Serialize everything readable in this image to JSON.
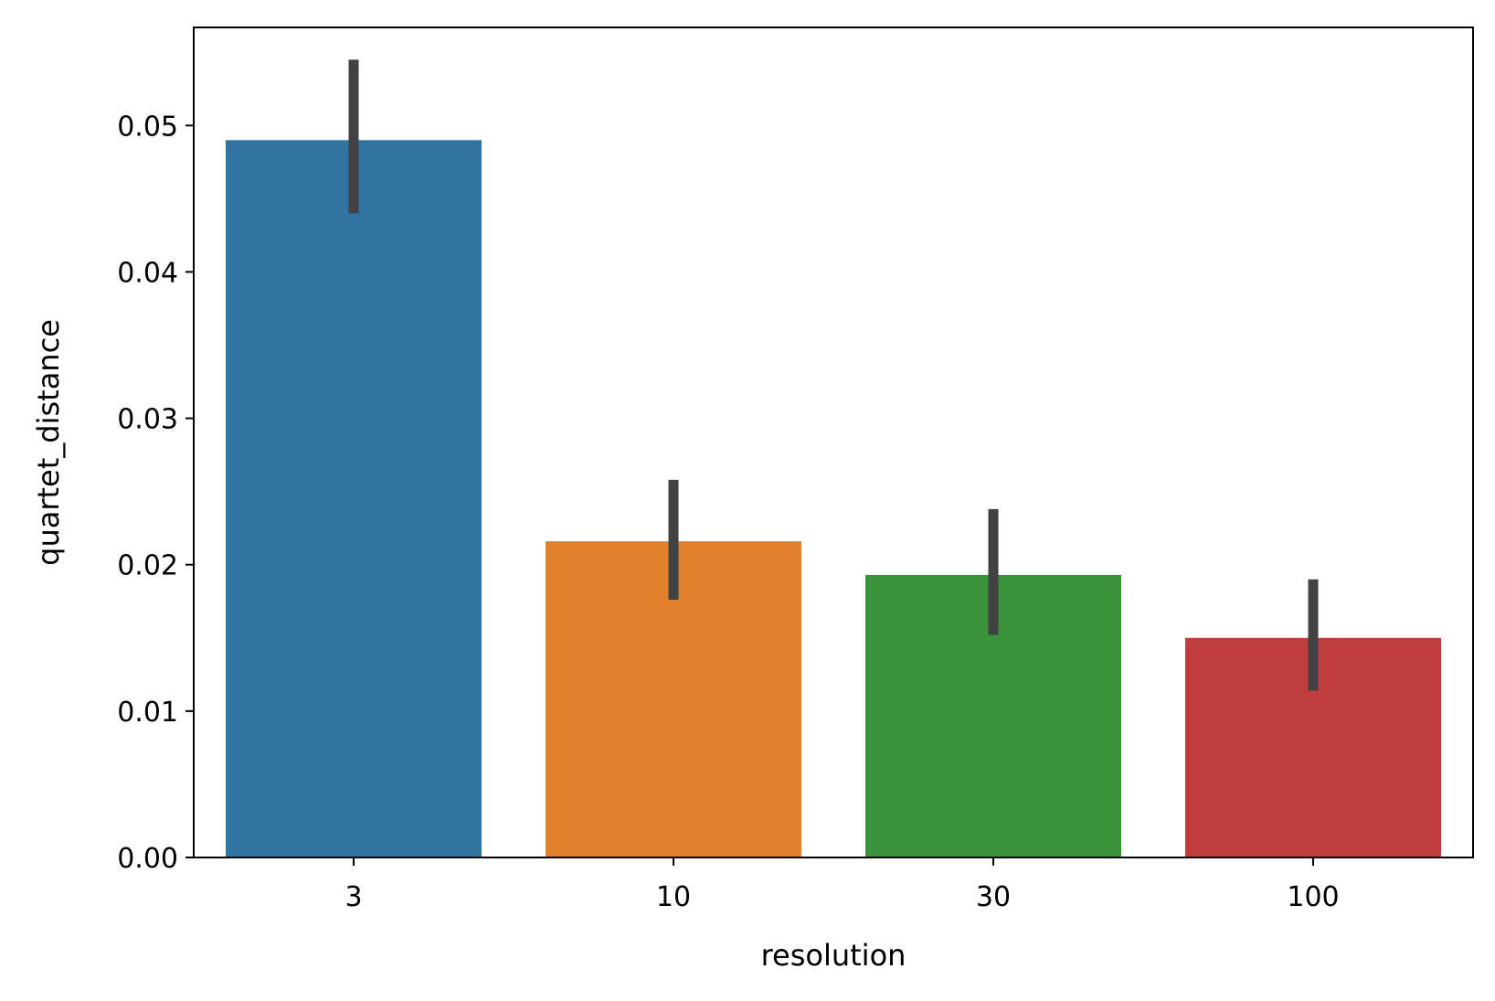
{
  "chart_data": {
    "type": "bar",
    "categories": [
      "3",
      "10",
      "30",
      "100"
    ],
    "values": [
      0.049,
      0.0216,
      0.0193,
      0.015
    ],
    "error_low": [
      0.044,
      0.0176,
      0.0152,
      0.0114
    ],
    "error_high": [
      0.0545,
      0.0258,
      0.0238,
      0.019
    ],
    "colors": [
      "#3274a1",
      "#e1812c",
      "#3a923a",
      "#c03d3e"
    ],
    "error_color": "#424242",
    "xlabel": "resolution",
    "ylabel": "quartet_distance",
    "ylim": [
      0,
      0.0567
    ],
    "yticks": [
      "0.00",
      "0.01",
      "0.02",
      "0.03",
      "0.04",
      "0.05"
    ],
    "grid": false
  }
}
